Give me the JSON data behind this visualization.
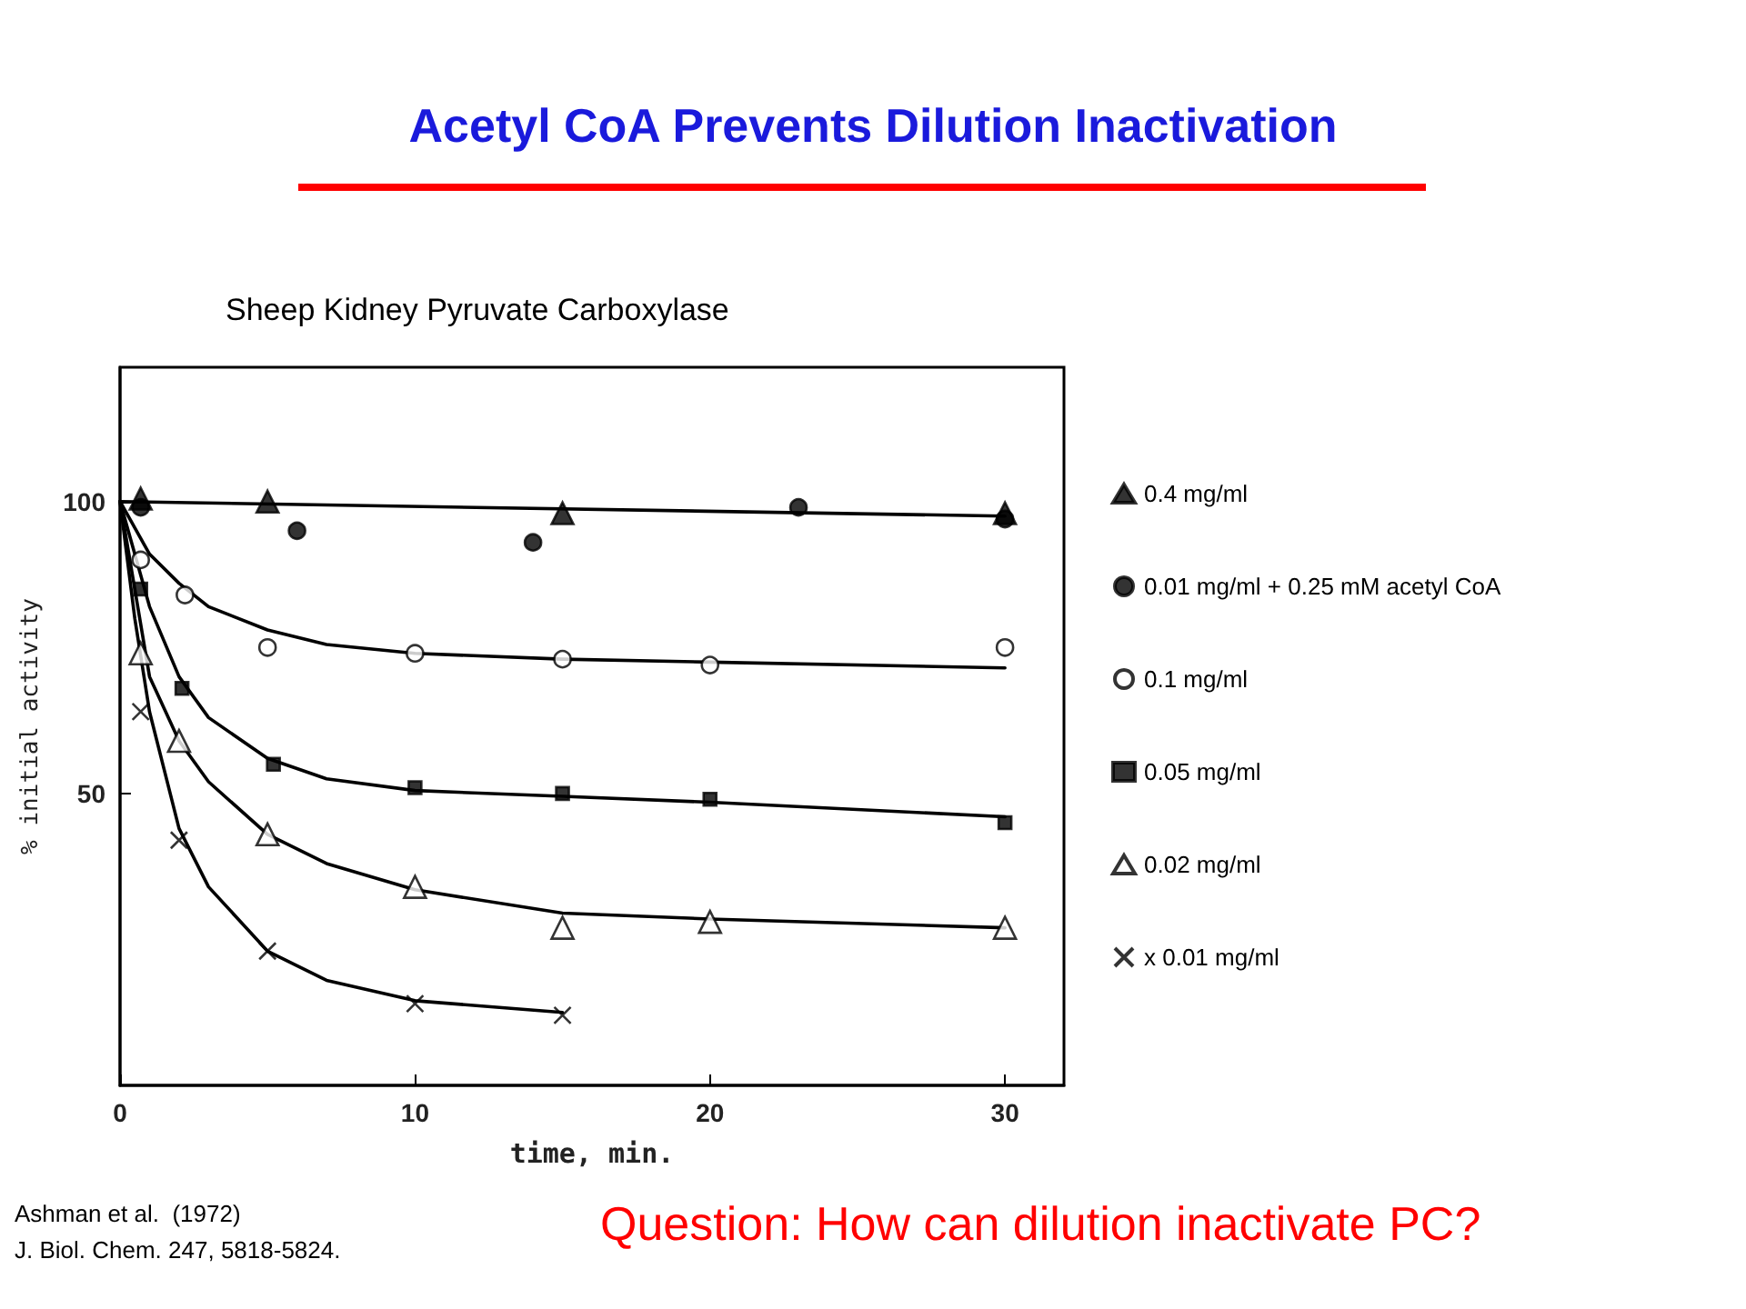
{
  "chart_data": {
    "type": "scatter",
    "title": "Acetyl CoA Prevents Dilution Inactivation",
    "subtitle": "Sheep Kidney Pyruvate Carboxylase",
    "xlabel": "time, min.",
    "ylabel": "% initial activity",
    "xlim": [
      0,
      32
    ],
    "xticks": [
      0,
      10,
      20,
      30
    ],
    "ylim": [
      0,
      123
    ],
    "yticks": [
      50,
      100
    ],
    "grid": false,
    "legend": "right",
    "annotations": [
      "Ashman et al.  (1972)",
      "J. Biol. Chem. 247, 5818-5824.",
      "Question: How can dilution inactivate PC?"
    ],
    "series": [
      {
        "name": "0.4 mg/ml",
        "color": "#000000",
        "marker": "triangle",
        "x": [
          0.7,
          5,
          15,
          30
        ],
        "values": [
          100.5,
          100,
          98,
          98
        ]
      },
      {
        "name": "0.01 mg/ml + 0.25 mM acetyl CoA",
        "color": "#000000",
        "marker": "circle",
        "x": [
          0.7,
          6,
          14,
          23,
          30
        ],
        "values": [
          99,
          95,
          93,
          99,
          97
        ]
      },
      {
        "name": "0.1 mg/ml",
        "color": "#ffffff",
        "marker": "circle",
        "x": [
          0.7,
          2.2,
          5,
          10,
          15,
          20,
          30
        ],
        "values": [
          90,
          84,
          75,
          74,
          73,
          72,
          75
        ]
      },
      {
        "name": "0.05 mg/ml",
        "color": "#000000",
        "marker": "square",
        "x": [
          0.7,
          2.1,
          5.2,
          10,
          15,
          20,
          30
        ],
        "values": [
          85,
          68,
          55,
          51,
          50,
          49,
          45
        ]
      },
      {
        "name": "0.02 mg/ml",
        "color": "#ffffff",
        "marker": "triangle",
        "x": [
          0.7,
          2,
          5,
          10,
          15,
          20,
          30
        ],
        "values": [
          74,
          59,
          43,
          34,
          27,
          28,
          27
        ]
      },
      {
        "name": "x 0.01 mg/ml",
        "color": "#000000",
        "marker": "cross",
        "x": [
          0.7,
          2,
          5,
          10,
          15
        ],
        "values": [
          64,
          42,
          23,
          14,
          12
        ]
      },
      {
        "type": "line",
        "color": "#000000",
        "marker": "none",
        "x": [
          0,
          30
        ],
        "values": [
          100,
          97.5
        ]
      },
      {
        "type": "line",
        "color": "#000000",
        "marker": "none",
        "x": [
          0,
          1,
          2,
          3,
          5,
          7,
          10,
          15,
          20,
          30
        ],
        "values": [
          100,
          91,
          86,
          82,
          78,
          75.5,
          74,
          73,
          72.5,
          71.5
        ]
      },
      {
        "type": "line",
        "color": "#000000",
        "marker": "none",
        "x": [
          0,
          1,
          2,
          3,
          5,
          7,
          10,
          15,
          20,
          30
        ],
        "values": [
          100,
          82,
          70,
          63,
          56,
          52.5,
          50.5,
          49.5,
          48.5,
          46
        ]
      },
      {
        "type": "line",
        "color": "#000000",
        "marker": "none",
        "x": [
          0,
          1,
          2,
          3,
          5,
          7,
          10,
          15,
          20,
          30
        ],
        "values": [
          100,
          70,
          59,
          52,
          43,
          38,
          33.5,
          29.5,
          28.5,
          27
        ]
      },
      {
        "type": "line",
        "color": "#000000",
        "marker": "none",
        "x": [
          0,
          0.5,
          1,
          2,
          3,
          5,
          7,
          10,
          15
        ],
        "values": [
          100,
          80,
          64,
          44,
          34,
          23,
          18,
          14.5,
          12.5
        ]
      }
    ]
  }
}
